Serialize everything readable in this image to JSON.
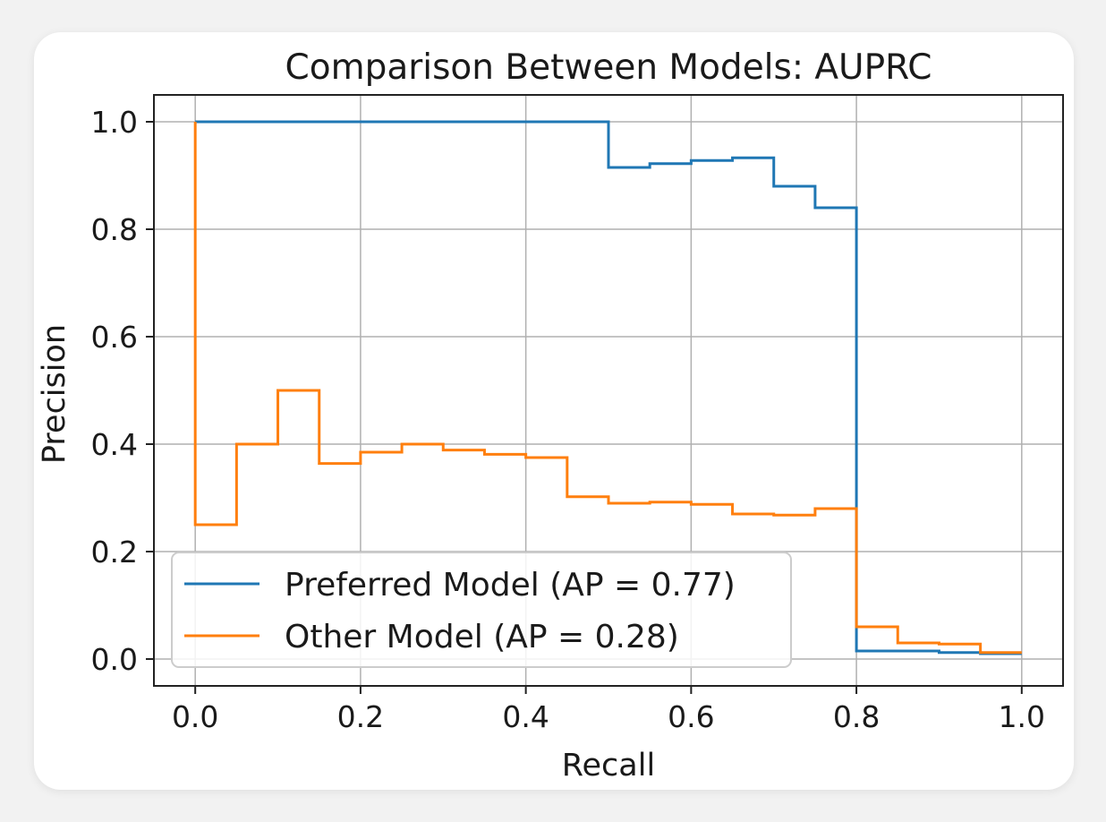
{
  "chart_data": {
    "type": "line",
    "title": "Comparison Between Models: AUPRC",
    "xlabel": "Recall",
    "ylabel": "Precision",
    "xlim": [
      -0.05,
      1.05
    ],
    "ylim": [
      -0.05,
      1.05
    ],
    "xticks": [
      0.0,
      0.2,
      0.4,
      0.6,
      0.8,
      1.0
    ],
    "yticks": [
      0.0,
      0.2,
      0.4,
      0.6,
      0.8,
      1.0
    ],
    "xtick_labels": [
      "0.0",
      "0.2",
      "0.4",
      "0.6",
      "0.8",
      "1.0"
    ],
    "ytick_labels": [
      "0.0",
      "0.2",
      "0.4",
      "0.6",
      "0.8",
      "1.0"
    ],
    "grid": true,
    "legend_position": "lower-left",
    "step": "post",
    "series": [
      {
        "name": "Preferred Model (AP = 0.77)",
        "color": "#1f77b4",
        "x": [
          0.0,
          0.5,
          0.55,
          0.6,
          0.65,
          0.7,
          0.75,
          0.8,
          0.9,
          0.95
        ],
        "y": [
          1.0,
          0.915,
          0.922,
          0.928,
          0.933,
          0.88,
          0.84,
          0.015,
          0.012,
          0.01
        ]
      },
      {
        "name": "Other Model (AP = 0.28)",
        "color": "#ff7f0e",
        "x": [
          0.0,
          0.05,
          0.1,
          0.15,
          0.2,
          0.25,
          0.3,
          0.35,
          0.4,
          0.45,
          0.5,
          0.55,
          0.6,
          0.65,
          0.7,
          0.75,
          0.8,
          0.85,
          0.9,
          0.95,
          1.0
        ],
        "y": [
          0.25,
          0.4,
          0.5,
          0.364,
          0.385,
          0.4,
          0.389,
          0.381,
          0.375,
          0.302,
          0.29,
          0.292,
          0.288,
          0.27,
          0.268,
          0.28,
          0.06,
          0.03,
          0.028,
          0.012,
          0.012
        ]
      }
    ]
  }
}
